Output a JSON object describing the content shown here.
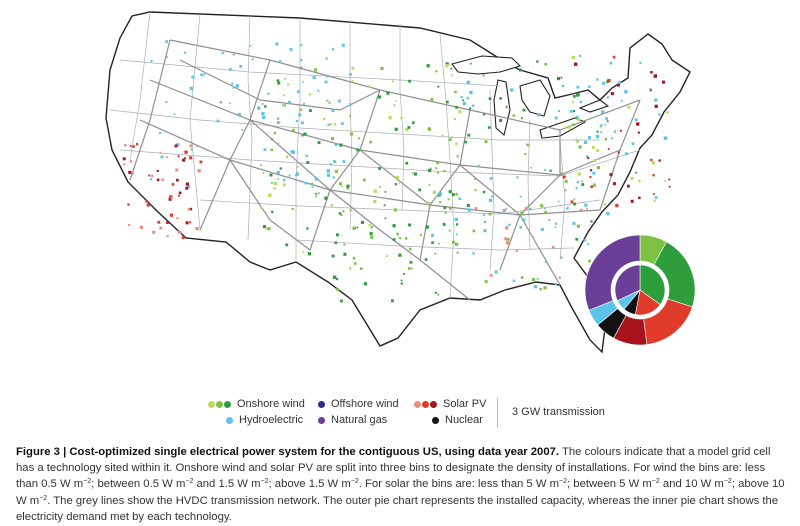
{
  "legend": {
    "onshore_wind": "Onshore wind",
    "offshore_wind": "Offshore wind",
    "solar_pv": "Solar PV",
    "hydroelectric": "Hydroelectric",
    "natural_gas": "Natural gas",
    "nuclear": "Nuclear",
    "transmission": "3 GW transmission"
  },
  "colors": {
    "wind_low": "#b9dc5a",
    "wind_mid": "#7dc242",
    "wind_high": "#2e9e3c",
    "solar_low": "#f08a7a",
    "solar_mid": "#e03a2a",
    "solar_high": "#a8141c",
    "hydro": "#5bc4ea",
    "offshore": "#2e2a8a",
    "gas": "#6b3f98",
    "nuclear": "#111111",
    "transmission": "#9a9a9a",
    "borders": "#9aa0a8"
  },
  "caption": {
    "title": "Figure 3 | Cost-optimized single electrical power system for the contiguous US, using data year 2007.",
    "p1": " The colours indicate that a model grid cell has a technology sited within it. Onshore wind and solar PV are split into three bins to designate the density of installations. For wind the bins are: less than 0.5 W m",
    "exp": "−2",
    "p2": "; between 0.5 W m",
    "p3": " and 1.5 W m",
    "p4": "; above 1.5 W m",
    "p5": ". For solar the bins are: less than 5 W m",
    "p6": "; between 5 W m",
    "p7": " and 10 W m",
    "p8": "; above 10 W m",
    "p9": ". The grey lines show the HVDC transmission network. The outer pie chart represents the installed capacity, whereas the inner pie chart shows the electricity demand met by each technology."
  }
}
